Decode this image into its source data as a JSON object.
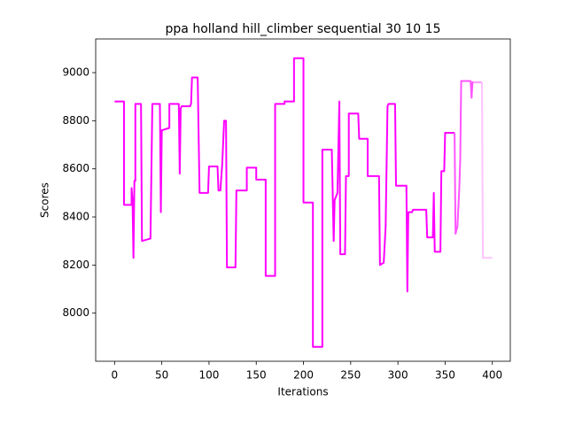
{
  "chart_data": {
    "type": "line",
    "title": "ppa holland hill_climber sequential 30 10 15",
    "x_label": "Iterations",
    "y_label": "Scores",
    "xlim": [
      -20,
      419
    ],
    "ylim": [
      7800,
      9140
    ],
    "xticks": [
      0,
      50,
      100,
      150,
      200,
      250,
      300,
      350,
      400
    ],
    "yticks": [
      8000,
      8200,
      8400,
      8600,
      8800,
      9000
    ],
    "grid": false,
    "series": [
      {
        "color": "#ff00ff",
        "x": [
          0,
          10,
          10,
          18,
          18,
          19,
          20,
          21,
          22,
          22,
          28,
          29,
          38,
          40,
          48,
          49,
          50,
          58,
          58,
          68,
          69,
          70,
          71,
          80,
          81,
          82,
          88,
          90,
          99,
          100,
          109,
          110,
          112,
          114,
          116,
          118,
          119,
          128,
          129,
          140,
          140,
          150,
          150,
          160,
          160,
          170,
          170,
          180,
          180,
          190,
          190,
          200,
          200,
          210,
          210,
          220,
          220,
          230,
          232,
          233,
          236,
          238,
          239,
          244,
          245,
          248,
          248,
          258,
          259,
          268,
          268,
          280,
          281,
          285,
          287,
          289,
          290,
          297,
          298,
          309,
          310,
          311,
          315,
          316,
          330,
          331,
          337,
          338,
          339,
          345,
          346,
          349,
          350,
          360
        ],
        "values": [
          8880,
          8880,
          8450,
          8450,
          8520,
          8470,
          8230,
          8550,
          8550,
          8870,
          8870,
          8300,
          8310,
          8870,
          8870,
          8420,
          8760,
          8770,
          8870,
          8870,
          8580,
          8850,
          8860,
          8860,
          8870,
          8980,
          8980,
          8500,
          8500,
          8610,
          8610,
          8510,
          8510,
          8620,
          8800,
          8800,
          8190,
          8190,
          8510,
          8510,
          8605,
          8605,
          8555,
          8555,
          8155,
          8155,
          8870,
          8870,
          8880,
          8880,
          9060,
          9060,
          8460,
          8460,
          7860,
          7860,
          8680,
          8680,
          8300,
          8470,
          8500,
          8880,
          8245,
          8245,
          8570,
          8570,
          8830,
          8830,
          8725,
          8725,
          8570,
          8570,
          8200,
          8210,
          8360,
          8860,
          8870,
          8870,
          8530,
          8530,
          8090,
          8420,
          8420,
          8430,
          8430,
          8315,
          8315,
          8500,
          8255,
          8255,
          8590,
          8590,
          8750,
          8750
        ]
      },
      {
        "color": "#ff55ff",
        "x": [
          360,
          361,
          363,
          365,
          366,
          367,
          377,
          378,
          379,
          380
        ],
        "values": [
          8750,
          8330,
          8360,
          8520,
          8640,
          8965,
          8965,
          8895,
          8960,
          8960
        ]
      },
      {
        "color": "#ff99ff",
        "x": [
          380,
          389
        ],
        "values": [
          8960,
          8960
        ]
      },
      {
        "color": "#ffc4ff",
        "x": [
          389,
          390,
          400
        ],
        "values": [
          8960,
          8230,
          8230
        ]
      }
    ]
  }
}
